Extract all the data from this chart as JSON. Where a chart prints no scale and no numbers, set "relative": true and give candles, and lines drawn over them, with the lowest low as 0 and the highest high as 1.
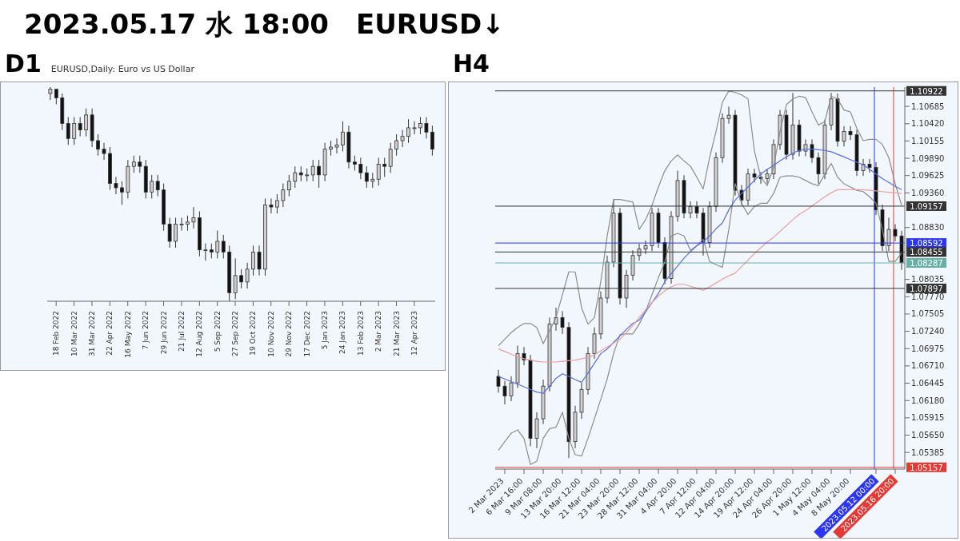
{
  "chart_data": [
    {
      "type": "other",
      "title": "2023.05.17 水 18:00　EURUSD↓"
    },
    {
      "type": "candlestick",
      "title": "D1",
      "subtitle": "EURUSD,Daily: Euro vs US Dollar",
      "relative": true,
      "categories": [
        null,
        "18 Feb 2022",
        null,
        null,
        "10 Mar 2022",
        null,
        null,
        "31 Mar 2022",
        null,
        null,
        "22 Apr 2022",
        null,
        null,
        "16 May 2022",
        null,
        null,
        "7 Jun 2022",
        null,
        null,
        "29 Jun 2022",
        null,
        null,
        "21 Jul 2022",
        null,
        null,
        "12 Aug 2022",
        null,
        null,
        "5 Sep 2022",
        null,
        null,
        "27 Sep 2022",
        null,
        null,
        "19 Oct 2022",
        null,
        null,
        "10 Nov 2022",
        null,
        null,
        "29 Nov 2022",
        null,
        null,
        "17 Dec 2022",
        null,
        null,
        "5 Jan 2023",
        null,
        null,
        "24 Jan 2023",
        null,
        null,
        "13 Feb 2023",
        null,
        null,
        "2 Mar 2023",
        null,
        null,
        "21 Mar 2023",
        null,
        null,
        "12 Apr 2023",
        null,
        null,
        null
      ],
      "ohlc": [
        [
          0.97,
          1.0,
          0.94,
          0.99
        ],
        [
          0.99,
          0.99,
          0.92,
          0.95
        ],
        [
          0.95,
          0.97,
          0.8,
          0.83
        ],
        [
          0.83,
          0.86,
          0.73,
          0.76
        ],
        [
          0.76,
          0.86,
          0.73,
          0.83
        ],
        [
          0.83,
          0.86,
          0.77,
          0.8
        ],
        [
          0.8,
          0.9,
          0.77,
          0.87
        ],
        [
          0.87,
          0.9,
          0.72,
          0.75
        ],
        [
          0.75,
          0.78,
          0.68,
          0.71
        ],
        [
          0.71,
          0.74,
          0.66,
          0.69
        ],
        [
          0.69,
          0.72,
          0.52,
          0.55
        ],
        [
          0.55,
          0.58,
          0.5,
          0.53
        ],
        [
          0.53,
          0.56,
          0.45,
          0.51
        ],
        [
          0.51,
          0.66,
          0.48,
          0.63
        ],
        [
          0.63,
          0.68,
          0.6,
          0.65
        ],
        [
          0.65,
          0.68,
          0.6,
          0.63
        ],
        [
          0.63,
          0.66,
          0.48,
          0.51
        ],
        [
          0.51,
          0.59,
          0.48,
          0.56
        ],
        [
          0.56,
          0.59,
          0.49,
          0.52
        ],
        [
          0.52,
          0.55,
          0.33,
          0.36
        ],
        [
          0.36,
          0.39,
          0.25,
          0.28
        ],
        [
          0.28,
          0.39,
          0.25,
          0.36
        ],
        [
          0.36,
          0.39,
          0.33,
          0.36
        ],
        [
          0.36,
          0.4,
          0.33,
          0.37
        ],
        [
          0.37,
          0.44,
          0.34,
          0.39
        ],
        [
          0.39,
          0.42,
          0.21,
          0.24
        ],
        [
          0.24,
          0.27,
          0.19,
          0.24
        ],
        [
          0.24,
          0.27,
          0.2,
          0.23
        ],
        [
          0.23,
          0.33,
          0.2,
          0.28
        ],
        [
          0.28,
          0.31,
          0.2,
          0.23
        ],
        [
          0.23,
          0.26,
          0.0,
          0.04
        ],
        [
          0.04,
          0.2,
          0.01,
          0.12
        ],
        [
          0.12,
          0.15,
          0.06,
          0.09
        ],
        [
          0.09,
          0.18,
          0.06,
          0.15
        ],
        [
          0.15,
          0.26,
          0.12,
          0.23
        ],
        [
          0.23,
          0.26,
          0.12,
          0.15
        ],
        [
          0.15,
          0.48,
          0.12,
          0.45
        ],
        [
          0.45,
          0.48,
          0.41,
          0.44
        ],
        [
          0.44,
          0.5,
          0.41,
          0.47
        ],
        [
          0.47,
          0.55,
          0.44,
          0.52
        ],
        [
          0.52,
          0.59,
          0.49,
          0.56
        ],
        [
          0.56,
          0.63,
          0.53,
          0.6
        ],
        [
          0.6,
          0.63,
          0.56,
          0.59
        ],
        [
          0.59,
          0.62,
          0.56,
          0.59
        ],
        [
          0.59,
          0.66,
          0.56,
          0.63
        ],
        [
          0.63,
          0.66,
          0.53,
          0.59
        ],
        [
          0.59,
          0.74,
          0.56,
          0.71
        ],
        [
          0.71,
          0.75,
          0.68,
          0.72
        ],
        [
          0.72,
          0.76,
          0.69,
          0.73
        ],
        [
          0.73,
          0.84,
          0.7,
          0.79
        ],
        [
          0.79,
          0.82,
          0.62,
          0.65
        ],
        [
          0.65,
          0.68,
          0.61,
          0.64
        ],
        [
          0.64,
          0.67,
          0.57,
          0.6
        ],
        [
          0.6,
          0.63,
          0.53,
          0.56
        ],
        [
          0.56,
          0.6,
          0.53,
          0.57
        ],
        [
          0.57,
          0.67,
          0.54,
          0.64
        ],
        [
          0.64,
          0.67,
          0.58,
          0.63
        ],
        [
          0.63,
          0.74,
          0.6,
          0.71
        ],
        [
          0.71,
          0.78,
          0.68,
          0.75
        ],
        [
          0.75,
          0.8,
          0.72,
          0.77
        ],
        [
          0.77,
          0.85,
          0.74,
          0.81
        ],
        [
          0.81,
          0.84,
          0.78,
          0.81
        ],
        [
          0.81,
          0.86,
          0.78,
          0.83
        ],
        [
          0.83,
          0.86,
          0.76,
          0.79
        ],
        [
          0.79,
          0.82,
          0.68,
          0.71
        ]
      ]
    },
    {
      "type": "candlestick",
      "title": "H4",
      "marker": "none",
      "categories": [
        null,
        "2 Mar 2023",
        null,
        null,
        "6 Mar 16:00",
        null,
        null,
        "9 Mar 08:00",
        null,
        null,
        "13 Mar 20:00",
        null,
        null,
        "16 Mar 12:00",
        null,
        null,
        "21 Mar 04:00",
        null,
        null,
        "23 Mar 20:00",
        null,
        null,
        "28 Mar 12:00",
        null,
        null,
        "31 Mar 04:00",
        null,
        null,
        "4 Apr 20:00",
        null,
        null,
        "7 Apr 12:00",
        null,
        null,
        "12 Apr 04:00",
        null,
        null,
        "14 Apr 20:00",
        null,
        null,
        "19 Apr 12:00",
        null,
        null,
        "24 Apr 04:00",
        null,
        null,
        "26 Apr 20:00",
        null,
        null,
        "1 May 12:00",
        null,
        null,
        "4 May 04:00",
        null,
        null,
        "8 May 20:00",
        null,
        null,
        null,
        "2023.05.12 00:00",
        null,
        null,
        "2023.05.16 20:00",
        null
      ],
      "ylim": [
        1.0513,
        1.1098
      ],
      "yticks": [
        1.10685,
        {
          "value": 1.1042,
          "label": "1.10420"
        },
        1.10155,
        {
          "value": 1.0989,
          "label": "1.09890"
        },
        1.09625,
        {
          "value": 1.0936,
          "label": "1.09360"
        },
        {
          "value": 1.0883,
          "label": "1.08830"
        },
        1.08035,
        {
          "value": 1.0777,
          "label": "1.07770"
        },
        1.07505,
        {
          "value": 1.0724,
          "label": "1.07240"
        },
        1.06975,
        {
          "value": 1.0671,
          "label": "1.06710"
        },
        1.06445,
        {
          "value": 1.0618,
          "label": "1.06180"
        },
        1.05915,
        {
          "value": 1.0565,
          "label": "1.05650"
        },
        1.05385
      ],
      "ref_lines": [
        {
          "axis": "y",
          "value": 1.10922,
          "label": "1.10922",
          "color": "#333333"
        },
        {
          "axis": "y",
          "value": 1.09157,
          "label": "1.09157",
          "color": "#333333"
        },
        {
          "axis": "y",
          "value": 1.08592,
          "label": "1.08592",
          "color": "#2b35f5"
        },
        {
          "axis": "y",
          "value": 1.08455,
          "label": "1.08455",
          "color": "#333333"
        },
        {
          "axis": "y",
          "value": 1.08287,
          "label": "1.08287",
          "color": "#67b0a8"
        },
        {
          "axis": "y",
          "value": 1.07897,
          "label": "1.07897",
          "color": "#333333"
        },
        {
          "axis": "y",
          "value": 1.05157,
          "label": "1.05157",
          "color": "#e53935"
        },
        {
          "axis": "x",
          "value": "2023.05.12 00:00",
          "color": "#2b35f5"
        },
        {
          "axis": "x",
          "value": "2023.05.16 20:00",
          "color": "#e53935"
        }
      ],
      "series": [
        {
          "type": "line",
          "color": "#8c8c8c",
          "values": [
            1.0702,
            1.0712,
            1.0722,
            1.073,
            1.0736,
            1.0736,
            1.073,
            1.0705,
            1.0725,
            1.0745,
            1.078,
            1.0815,
            1.0815,
            1.076,
            1.0735,
            1.0745,
            1.08,
            1.087,
            1.0926,
            1.0926,
            1.0924,
            1.0922,
            1.088,
            1.0895,
            1.0917,
            1.0945,
            1.097,
            1.0985,
            1.0994,
            1.0985,
            1.0977,
            1.096,
            1.0942,
            1.099,
            1.103,
            1.1075,
            1.1092,
            1.109,
            1.1086,
            1.108,
            1.1,
            1.096,
            1.0947,
            1.0975,
            1.103,
            1.1071,
            1.108,
            1.1084,
            1.1082,
            1.106,
            1.104,
            1.1045,
            1.1084,
            1.108,
            1.1063,
            1.106,
            1.1035,
            1.1016,
            1.1018,
            1.1018,
            1.101,
            1.099,
            1.095,
            1.0917
          ]
        },
        {
          "type": "line",
          "color": "#8c8c8c",
          "values": [
            1.0542,
            1.0555,
            1.0568,
            1.0573,
            1.056,
            1.052,
            1.0525,
            1.056,
            1.0575,
            1.0577,
            1.06,
            1.056,
            1.0535,
            1.0533,
            1.056,
            1.059,
            1.062,
            1.0651,
            1.069,
            1.0719,
            1.072,
            1.072,
            1.0735,
            1.0754,
            1.078,
            1.0806,
            1.083,
            1.087,
            1.0874,
            1.087,
            1.0848,
            1.0855,
            1.0865,
            1.0831,
            1.0826,
            1.0822,
            1.088,
            1.095,
            1.092,
            1.0903,
            1.0915,
            1.092,
            1.092,
            1.0935,
            1.096,
            1.0962,
            1.0962,
            1.096,
            1.0955,
            1.095,
            1.0947,
            1.0965,
            1.0981,
            1.096,
            1.095,
            1.0945,
            1.094,
            1.0938,
            1.093,
            1.092,
            1.088,
            1.0831,
            1.0831,
            1.0844
          ]
        },
        {
          "type": "line",
          "color": "#5a6ee0",
          "values": [
            1.0655,
            1.0651,
            1.0647,
            1.0643,
            1.0639,
            1.0635,
            1.0631,
            1.0629,
            1.064,
            1.0652,
            1.0659,
            1.0655,
            1.065,
            1.0646,
            1.066,
            1.0675,
            1.069,
            1.0697,
            1.0707,
            1.0717,
            1.0727,
            1.0736,
            1.0741,
            1.0754,
            1.0768,
            1.0782,
            1.08,
            1.0812,
            1.0824,
            1.0836,
            1.0846,
            1.0855,
            1.0861,
            1.087,
            1.0881,
            1.089,
            1.091,
            1.0925,
            1.0935,
            1.0945,
            1.0955,
            1.0965,
            1.0972,
            1.0978,
            1.0985,
            1.0991,
            1.0997,
            1.1001,
            1.1003,
            1.1003,
            1.1002,
            1.1001,
            1.0999,
            1.0995,
            1.0991,
            1.0987,
            1.0983,
            1.0979,
            1.0972,
            1.0965,
            1.0958,
            1.0952,
            1.0946,
            1.0941
          ]
        },
        {
          "type": "line",
          "color": "#e8a0a0",
          "values": [
            1.0697,
            1.0693,
            1.0689,
            1.0685,
            1.0682,
            1.068,
            1.0678,
            1.0677,
            1.0677,
            1.0677,
            1.0678,
            1.0679,
            1.068,
            1.0682,
            1.0684,
            1.0688,
            1.0694,
            1.07,
            1.0706,
            1.0712,
            1.0722,
            1.0733,
            1.0745,
            1.0757,
            1.0768,
            1.0778,
            1.0786,
            1.0792,
            1.0796,
            1.0796,
            1.0793,
            1.079,
            1.0787,
            1.0792,
            1.0798,
            1.0804,
            1.0809,
            1.0813,
            1.0823,
            1.0833,
            1.0843,
            1.0852,
            1.0861,
            1.0868,
            1.0877,
            1.0886,
            1.0895,
            1.0903,
            1.0909,
            1.0916,
            1.0923,
            1.093,
            1.0936,
            1.0941,
            1.0941,
            1.0941,
            1.0941,
            1.0941,
            1.094,
            1.0939,
            1.0938,
            1.0937,
            1.0936,
            1.0935
          ]
        }
      ],
      "ohlc": [
        [
          1.0655,
          1.0665,
          1.063,
          1.064
        ],
        [
          1.064,
          1.0648,
          1.0612,
          1.0625
        ],
        [
          1.0625,
          1.0655,
          1.0617,
          1.0645
        ],
        [
          1.0645,
          1.0702,
          1.0637,
          1.069
        ],
        [
          1.069,
          1.07,
          1.0672,
          1.068
        ],
        [
          1.068,
          1.0688,
          1.0548,
          1.056
        ],
        [
          1.056,
          1.06,
          1.0545,
          1.059
        ],
        [
          1.059,
          1.065,
          1.0582,
          1.064
        ],
        [
          1.064,
          1.0745,
          1.0632,
          1.0735
        ],
        [
          1.0735,
          1.076,
          1.0725,
          1.0745
        ],
        [
          1.0745,
          1.0755,
          1.072,
          1.073
        ],
        [
          1.073,
          1.0738,
          1.053,
          1.0555
        ],
        [
          1.0555,
          1.061,
          1.0545,
          1.06
        ],
        [
          1.06,
          1.0645,
          1.059,
          1.0635
        ],
        [
          1.0635,
          1.07,
          1.0627,
          1.069
        ],
        [
          1.069,
          1.073,
          1.0682,
          1.072
        ],
        [
          1.072,
          1.0785,
          1.0712,
          1.0775
        ],
        [
          1.0775,
          1.084,
          1.0767,
          1.083
        ],
        [
          1.083,
          1.0926,
          1.0822,
          1.0905
        ],
        [
          1.0905,
          1.0913,
          1.0765,
          1.0775
        ],
        [
          1.0775,
          1.0818,
          1.076,
          1.081
        ],
        [
          1.081,
          1.0848,
          1.0802,
          1.084
        ],
        [
          1.084,
          1.0858,
          1.0832,
          1.085
        ],
        [
          1.085,
          1.0863,
          1.0842,
          1.0855
        ],
        [
          1.0855,
          1.0913,
          1.0847,
          1.0905
        ],
        [
          1.0905,
          1.0913,
          1.0852,
          1.086
        ],
        [
          1.086,
          1.0868,
          1.0796,
          1.0805
        ],
        [
          1.0805,
          1.0908,
          1.0797,
          1.09
        ],
        [
          1.09,
          1.097,
          1.0892,
          1.0955
        ],
        [
          1.0955,
          1.0963,
          1.0897,
          1.0905
        ],
        [
          1.0905,
          1.0923,
          1.0897,
          1.0915
        ],
        [
          1.0915,
          1.0923,
          1.0897,
          1.0905
        ],
        [
          1.0905,
          1.0913,
          1.084,
          1.086
        ],
        [
          1.086,
          1.0923,
          1.0852,
          1.0915
        ],
        [
          1.0915,
          1.0998,
          1.0907,
          1.099
        ],
        [
          1.099,
          1.1058,
          1.0982,
          1.105
        ],
        [
          1.105,
          1.1068,
          1.1042,
          1.1055
        ],
        [
          1.1055,
          1.1063,
          1.0932,
          1.094
        ],
        [
          1.094,
          1.0948,
          1.0917,
          1.0925
        ],
        [
          1.0925,
          1.0973,
          1.0917,
          1.0965
        ],
        [
          1.0965,
          1.0973,
          1.0952,
          1.096
        ],
        [
          1.096,
          1.0968,
          1.095,
          1.0958
        ],
        [
          1.0958,
          1.0973,
          1.095,
          1.0965
        ],
        [
          1.0965,
          1.1018,
          1.0957,
          1.101
        ],
        [
          1.101,
          1.1063,
          1.1002,
          1.1055
        ],
        [
          1.1055,
          1.1063,
          1.0987,
          1.0995
        ],
        [
          1.0995,
          1.1089,
          1.0987,
          1.104
        ],
        [
          1.104,
          1.1048,
          1.0992,
          1.1
        ],
        [
          1.1,
          1.1018,
          1.0992,
          1.101
        ],
        [
          1.101,
          1.1018,
          1.0982,
          1.099
        ],
        [
          1.099,
          1.0998,
          1.095,
          1.0965
        ],
        [
          1.0965,
          1.1048,
          1.0957,
          1.104
        ],
        [
          1.104,
          1.1089,
          1.1032,
          1.108
        ],
        [
          1.108,
          1.1088,
          1.1007,
          1.1015
        ],
        [
          1.1015,
          1.1038,
          1.1007,
          1.103
        ],
        [
          1.103,
          1.1038,
          1.1017,
          1.1025
        ],
        [
          1.1025,
          1.1033,
          1.0962,
          1.097
        ],
        [
          1.097,
          1.0988,
          1.0962,
          1.098
        ],
        [
          1.098,
          1.0988,
          1.0967,
          1.0975
        ],
        [
          1.0975,
          1.0983,
          1.0902,
          1.091
        ],
        [
          1.091,
          1.0918,
          1.0847,
          1.0855
        ],
        [
          1.0855,
          1.0898,
          1.0847,
          1.088
        ],
        [
          1.088,
          1.0888,
          1.0862,
          1.087
        ],
        [
          1.087,
          1.0878,
          1.0818,
          1.0829
        ]
      ]
    }
  ]
}
